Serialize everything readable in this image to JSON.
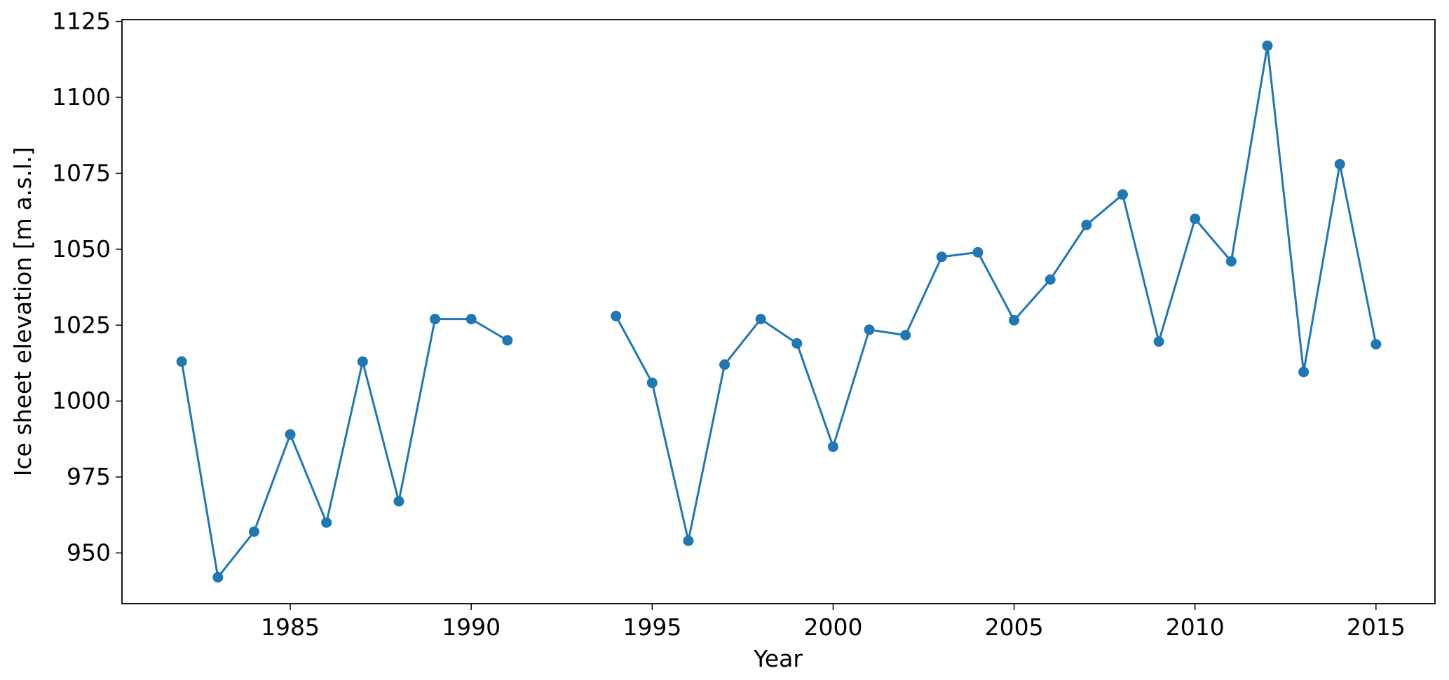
{
  "chart_data": {
    "type": "line",
    "x_label": "Year",
    "y_label": "Ice sheet elevation [m a.s.l.]",
    "x": [
      1982,
      1983,
      1984,
      1985,
      1986,
      1987,
      1988,
      1989,
      1990,
      1991,
      1992,
      1993,
      1994,
      1995,
      1996,
      1997,
      1998,
      1999,
      2000,
      2001,
      2002,
      2003,
      2004,
      2005,
      2006,
      2007,
      2008,
      2009,
      2010,
      2011,
      2012,
      2013,
      2014,
      2015
    ],
    "series": [
      {
        "color": "#1f77b4",
        "marker": "circle",
        "values": [
          1013,
          942,
          957,
          989,
          960,
          1013,
          967,
          1027,
          1027,
          1020,
          null,
          null,
          1028,
          1006,
          954,
          1012,
          1027,
          1019,
          985,
          1023.5,
          1021.7,
          1047.5,
          1049,
          1026.6,
          1040,
          1058,
          1068,
          1019.6,
          1060,
          1046,
          1117,
          1009.6,
          1078,
          1018.7
        ]
      }
    ],
    "xlim": [
      1980.35,
      2016.63
    ],
    "xticks": [
      1985,
      1990,
      1995,
      2000,
      2005,
      2010,
      2015
    ],
    "ylim": [
      933.3,
      1125.6
    ],
    "yticks": [
      950,
      975,
      1000,
      1025,
      1050,
      1075,
      1100,
      1125
    ],
    "grid": false
  }
}
